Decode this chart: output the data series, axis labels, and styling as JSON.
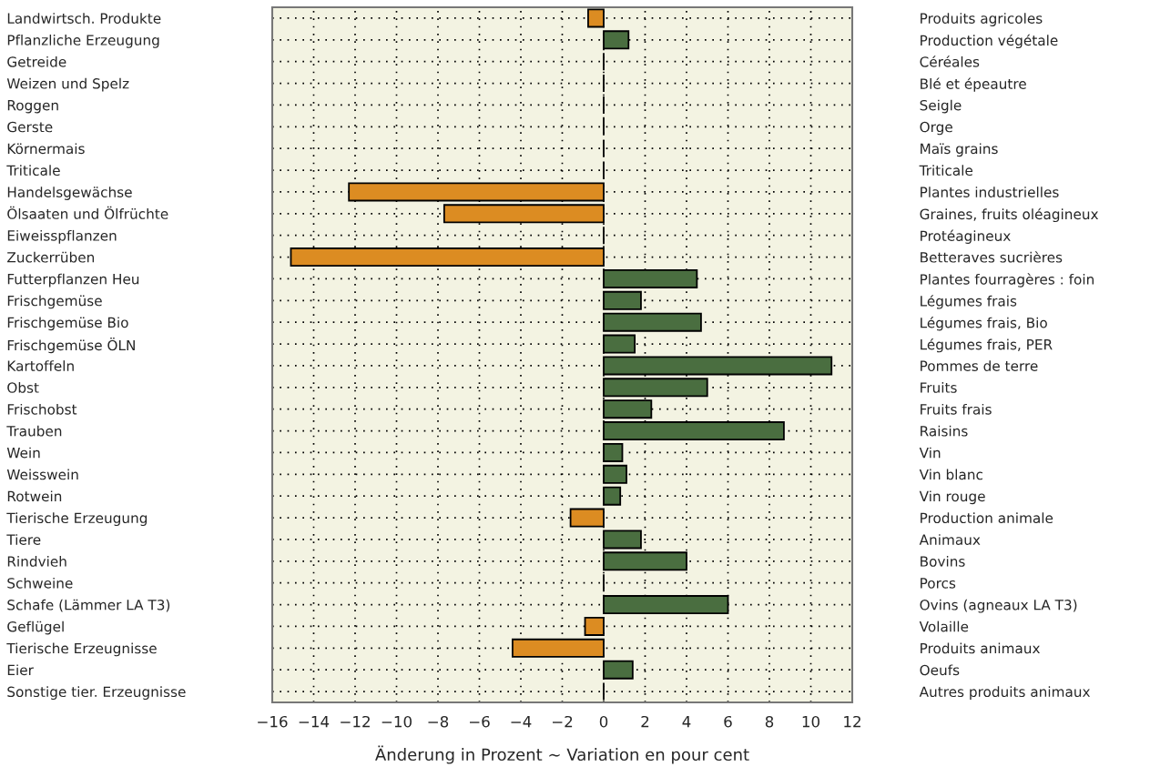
{
  "chart_data": {
    "type": "bar",
    "orientation": "horizontal",
    "categories": [
      "Landwirtsch. Produkte",
      "Pflanzliche Erzeugung",
      "Getreide",
      "Weizen und Spelz",
      "Roggen",
      "Gerste",
      "Körnermais",
      "Triticale",
      "Handelsgewächse",
      "Ölsaaten und Ölfrüchte",
      "Eiweisspflanzen",
      "Zuckerrüben",
      "Futterpflanzen Heu",
      "Frischgemüse",
      "Frischgemüse Bio",
      "Frischgemüse ÖLN",
      "Kartoffeln",
      "Obst",
      "Frischobst",
      "Trauben",
      "Wein",
      "Weisswein",
      "Rotwein",
      "Tierische Erzeugung",
      "Tiere",
      "Rindvieh",
      "Schweine",
      "Schafe (Lämmer LA T3)",
      "Geflügel",
      "Tierische Erzeugnisse",
      "Eier",
      "Sonstige tier. Erzeugnisse"
    ],
    "y2_categories": [
      "Produits agricoles",
      "Production végétale",
      "Céréales",
      "Blé et épeautre",
      "Seigle",
      "Orge",
      "Maïs grains",
      "Triticale",
      "Plantes industrielles",
      "Graines, fruits oléagineux",
      "Protéagineux",
      "Betteraves sucrières",
      "Plantes fourragères : foin",
      "Légumes frais",
      "Légumes frais, Bio",
      "Légumes frais, PER",
      "Pommes de terre",
      "Fruits",
      "Fruits frais",
      "Raisins",
      "Vin",
      "Vin blanc",
      "Vin rouge",
      "Production animale",
      "Animaux",
      "Bovins",
      "Porcs",
      "Ovins (agneaux LA T3)",
      "Volaille",
      "Produits animaux",
      "Oeufs",
      "Autres produits animaux"
    ],
    "values": [
      -0.75,
      1.2,
      0,
      0,
      0,
      0,
      0,
      0,
      -12.3,
      -7.7,
      0,
      -15.1,
      4.5,
      1.8,
      4.7,
      1.5,
      11.0,
      5.0,
      2.3,
      8.7,
      0.9,
      1.1,
      0.8,
      -1.6,
      1.8,
      4.0,
      0,
      6.0,
      -0.9,
      -4.4,
      1.4,
      0
    ],
    "colors": [
      "#dc8c22",
      "#4a6e40",
      "#000000",
      "#000000",
      "#000000",
      "#000000",
      "#000000",
      "#000000",
      "#dc8c22",
      "#dc8c22",
      "#000000",
      "#dc8c22",
      "#4a6e40",
      "#4a6e40",
      "#4a6e40",
      "#4a6e40",
      "#4a6e40",
      "#4a6e40",
      "#4a6e40",
      "#4a6e40",
      "#4a6e40",
      "#4a6e40",
      "#4a6e40",
      "#dc8c22",
      "#4a6e40",
      "#4a6e40",
      "#000000",
      "#4a6e40",
      "#dc8c22",
      "#dc8c22",
      "#4a6e40",
      "#000000"
    ],
    "xlim": [
      -16,
      12
    ],
    "xticks": [
      -16,
      -14,
      -12,
      -10,
      -8,
      -6,
      -4,
      -2,
      0,
      2,
      4,
      6,
      8,
      10,
      12
    ],
    "xlabel": "Änderung in Prozent ~ Variation en pour cent",
    "grid": true,
    "legend": false
  }
}
